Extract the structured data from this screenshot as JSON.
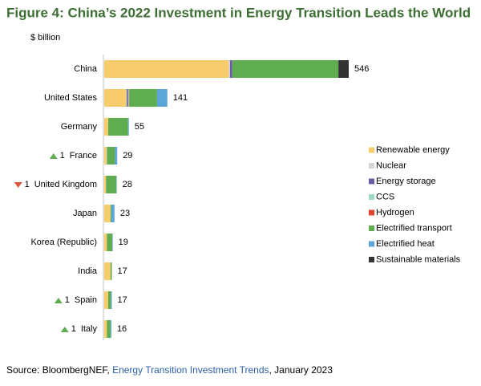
{
  "chart_data": {
    "type": "stacked-bar-horizontal",
    "title": "Figure 4: China’s 2022 Investment in Energy Transition Leads the World",
    "unit_label": "$ billion",
    "categories": [
      "China",
      "United States",
      "Germany",
      "France",
      "United Kingdom",
      "Japan",
      "Korea (Republic)",
      "India",
      "Spain",
      "Italy"
    ],
    "totals": [
      546,
      141,
      55,
      29,
      28,
      23,
      19,
      17,
      17,
      16
    ],
    "rank_changes": [
      null,
      null,
      null,
      {
        "direction": "up",
        "label": "1"
      },
      {
        "direction": "down",
        "label": "1"
      },
      null,
      null,
      null,
      {
        "direction": "up",
        "label": "1"
      },
      {
        "direction": "up",
        "label": "1"
      }
    ],
    "series": [
      {
        "name": "Renewable energy",
        "color": "#f6cd6a",
        "values": [
          278,
          49,
          9,
          5,
          4,
          14,
          6,
          14,
          9,
          6
        ]
      },
      {
        "name": "Nuclear",
        "color": "#d4d4d4",
        "values": [
          3,
          1,
          0,
          1,
          0,
          0,
          0,
          0,
          0,
          0
        ]
      },
      {
        "name": "Energy storage",
        "color": "#6b5aa6",
        "values": [
          5,
          3,
          0,
          0,
          0,
          0,
          0,
          0,
          0,
          0
        ]
      },
      {
        "name": "CCS",
        "color": "#9fd9c6",
        "values": [
          0,
          2,
          0,
          0,
          0,
          0,
          0,
          0,
          0,
          0
        ]
      },
      {
        "name": "Hydrogen",
        "color": "#e2452f",
        "values": [
          0,
          1,
          0,
          0,
          0,
          0,
          0,
          0,
          0,
          0
        ]
      },
      {
        "name": "Electrified transport",
        "color": "#5fad50",
        "values": [
          237,
          62,
          44,
          18,
          23,
          2,
          12,
          3,
          6,
          8
        ]
      },
      {
        "name": "Electrified heat",
        "color": "#5aa5d9",
        "values": [
          0,
          23,
          2,
          5,
          1,
          7,
          1,
          0,
          2,
          2
        ]
      },
      {
        "name": "Sustainable materials",
        "color": "#333333",
        "values": [
          23,
          0,
          0,
          0,
          0,
          0,
          0,
          0,
          0,
          0
        ]
      }
    ],
    "source": {
      "prefix": "Source: BloombergNEF, ",
      "link": "Energy Transition Investment Trends",
      "suffix": ", January 2023"
    }
  }
}
